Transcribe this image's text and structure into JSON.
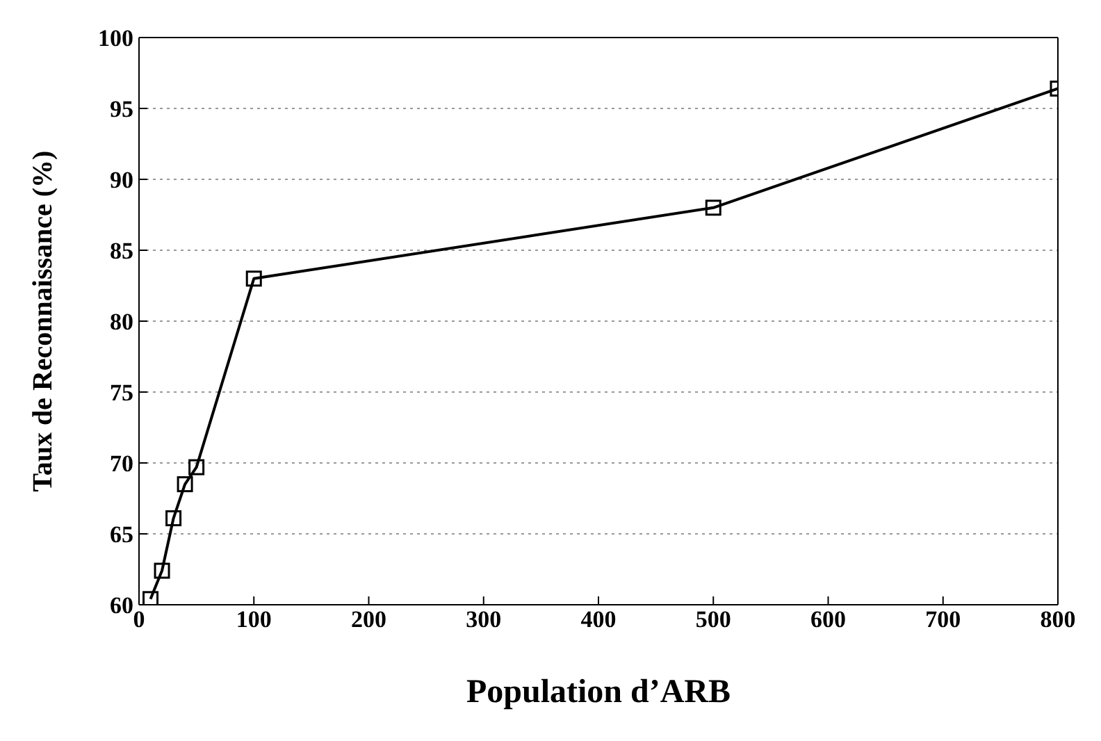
{
  "chart_data": {
    "type": "line",
    "xlabel": "Population d’ARB",
    "ylabel": "Taux de Reconnaissance (%)",
    "x": [
      10,
      20,
      30,
      40,
      50,
      100,
      500,
      800
    ],
    "series": [
      {
        "color": "#000000",
        "values": [
          60.4,
          62.4,
          66.1,
          68.5,
          69.7,
          83,
          88,
          96.4
        ]
      }
    ],
    "xlim": [
      0,
      800
    ],
    "xticks": [
      0,
      100,
      200,
      300,
      400,
      500,
      600,
      700,
      800
    ],
    "ylim": [
      60,
      100
    ],
    "yticks": [
      60,
      65,
      70,
      75,
      80,
      85,
      90,
      95,
      100
    ],
    "grid": "y",
    "marker": "square",
    "line_style": "solid"
  }
}
